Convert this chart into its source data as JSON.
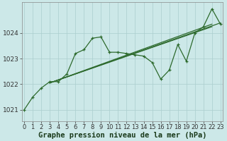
{
  "background_color": "#cce8e8",
  "grid_color": "#aacece",
  "line_color": "#2d6a2d",
  "marker_color": "#2d6a2d",
  "xlabel": "Graphe pression niveau de la mer (hPa)",
  "xlabel_fontsize": 7.5,
  "ylabel_fontsize": 6.5,
  "tick_fontsize": 6,
  "xlim": [
    -0.3,
    23.3
  ],
  "ylim": [
    1020.55,
    1025.2
  ],
  "yticks": [
    1021,
    1022,
    1023,
    1024
  ],
  "xticks": [
    0,
    1,
    2,
    3,
    4,
    5,
    6,
    7,
    8,
    9,
    10,
    11,
    12,
    13,
    14,
    15,
    16,
    17,
    18,
    19,
    20,
    21,
    22,
    23
  ],
  "main_series_x": [
    0,
    1,
    2,
    3,
    4,
    5,
    6,
    7,
    8,
    9,
    10,
    11,
    12,
    13,
    14,
    15,
    16,
    17,
    18,
    19,
    20,
    21,
    22,
    23
  ],
  "main_series_y": [
    1021.0,
    1021.5,
    1021.85,
    1022.1,
    1022.1,
    1022.4,
    1023.2,
    1023.35,
    1023.8,
    1023.85,
    1023.25,
    1023.25,
    1023.2,
    1023.15,
    1023.1,
    1022.85,
    1022.2,
    1022.55,
    1023.55,
    1022.9,
    1024.0,
    1024.25,
    1024.95,
    1024.35
  ],
  "smooth_line1_x": [
    3,
    22
  ],
  "smooth_line1_y": [
    1022.05,
    1024.25
  ],
  "smooth_line2_x": [
    3,
    22
  ],
  "smooth_line2_y": [
    1022.05,
    1024.35
  ],
  "smooth_line3_x": [
    3,
    23
  ],
  "smooth_line3_y": [
    1022.05,
    1024.4
  ]
}
